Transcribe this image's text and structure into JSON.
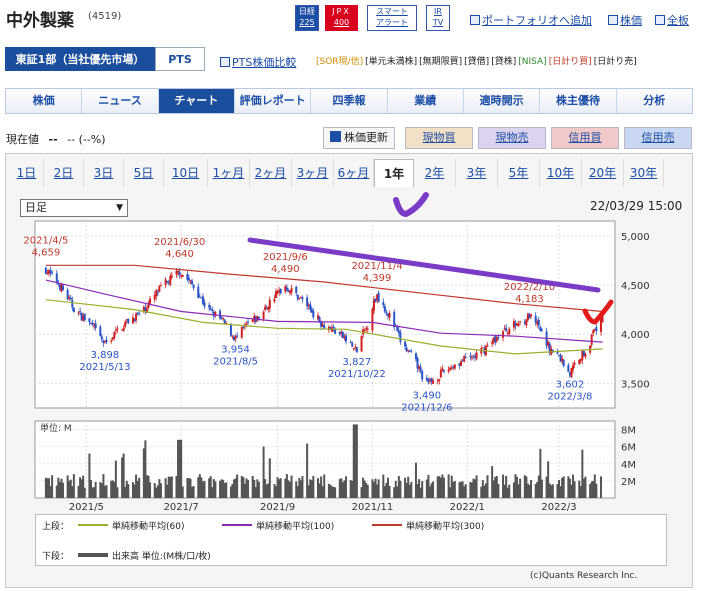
{
  "header": {
    "company": "中外製薬",
    "code": "(4519)",
    "tag_nikkei_1": "日経",
    "tag_nikkei_2": "225",
    "tag_jpx_1": "JPX",
    "tag_jpx_2": "400",
    "tag_smart_1": "スマート",
    "tag_smart_2": "アラート",
    "tag_ir_1": "IR",
    "tag_ir_2": "TV",
    "portfolio": "ポートフォリオへ追加",
    "stock_price": "株価",
    "full_view": "全板"
  },
  "market": {
    "primary": "東証1部（当社優先市場）",
    "pts": "PTS",
    "pts_compare": "PTS株価比較",
    "tags": [
      "[SOR現/信]",
      "[単元未満株]",
      "[無期限買]",
      "[貸借]",
      "[貸株]",
      "[NISA]",
      "[日計り買]",
      "[日計り売]"
    ],
    "tag_colors": [
      "#d88a00",
      "#333333",
      "#333333",
      "#333333",
      "#333333",
      "#2f8a2f",
      "#c0392b",
      "#333333"
    ]
  },
  "nav": {
    "tabs": [
      "株価",
      "ニュース",
      "チャート",
      "評価レポート",
      "四季報",
      "業績",
      "適時開示",
      "株主優待",
      "分析"
    ],
    "active": "チャート"
  },
  "quote": {
    "label": "現在値",
    "price": "--",
    "change": "-- (--%)",
    "refresh": "株価更新",
    "spot_buy": "現物買",
    "spot_sell": "現物売",
    "margin_buy": "信用買",
    "margin_sell": "信用売"
  },
  "periods": {
    "items": [
      "1日",
      "2日",
      "3日",
      "5日",
      "10日",
      "1ヶ月",
      "2ヶ月",
      "3ヶ月",
      "6ヶ月",
      "1年",
      "2年",
      "3年",
      "5年",
      "10年",
      "20年",
      "30年"
    ],
    "selected": "1年"
  },
  "chart_controls": {
    "interval": "日足",
    "timestamp": "22/03/29 15:00"
  },
  "chart_data": {
    "type": "candlestick",
    "y_ticks": [
      "5,000",
      "4,500",
      "4,000",
      "3,500"
    ],
    "ylim": [
      3250,
      5150
    ],
    "x_ticks": [
      "2021/5",
      "2021/7",
      "2021/9",
      "2021/11",
      "2022/1",
      "2022/3"
    ],
    "annotations": [
      {
        "date": "2021/4/5",
        "value": "4,659",
        "kind": "high"
      },
      {
        "date": "2021/5/13",
        "value": "3,898",
        "kind": "low"
      },
      {
        "date": "2021/6/30",
        "value": "4,640",
        "kind": "high"
      },
      {
        "date": "2021/8/5",
        "value": "3,954",
        "kind": "low"
      },
      {
        "date": "2021/9/6",
        "value": "4,490",
        "kind": "high"
      },
      {
        "date": "2021/10/22",
        "value": "3,827",
        "kind": "low"
      },
      {
        "date": "2021/11/4",
        "value": "4,399",
        "kind": "high"
      },
      {
        "date": "2021/12/6",
        "value": "3,490",
        "kind": "low"
      },
      {
        "date": "2022/2/10",
        "value": "4,183",
        "kind": "high"
      },
      {
        "date": "2022/3/8",
        "value": "3,602",
        "kind": "low"
      }
    ],
    "price_path": [
      [
        "2021/4/5",
        4659
      ],
      [
        "2021/5/13",
        3898
      ],
      [
        "2021/6/30",
        4640
      ],
      [
        "2021/8/5",
        3954
      ],
      [
        "2021/9/6",
        4490
      ],
      [
        "2021/10/22",
        3827
      ],
      [
        "2021/11/4",
        4399
      ],
      [
        "2021/12/6",
        3490
      ],
      [
        "2022/2/10",
        4183
      ],
      [
        "2022/3/8",
        3602
      ],
      [
        "2022/3/29",
        4150
      ]
    ],
    "ma60": [
      [
        "2021/4/5",
        4350
      ],
      [
        "2021/6/1",
        4250
      ],
      [
        "2021/7/15",
        4120
      ],
      [
        "2021/9/1",
        4060
      ],
      [
        "2021/10/15",
        4050
      ],
      [
        "2021/12/15",
        3880
      ],
      [
        "2022/2/1",
        3800
      ],
      [
        "2022/3/29",
        3850
      ]
    ],
    "ma100": [
      [
        "2021/4/5",
        4550
      ],
      [
        "2021/5/15",
        4400
      ],
      [
        "2021/7/1",
        4230
      ],
      [
        "2021/9/1",
        4130
      ],
      [
        "2021/11/1",
        4120
      ],
      [
        "2021/12/15",
        4010
      ],
      [
        "2022/2/1",
        3980
      ],
      [
        "2022/3/29",
        3920
      ]
    ],
    "ma300": [
      [
        "2021/4/5",
        4700
      ],
      [
        "2021/6/1",
        4700
      ],
      [
        "2021/8/1",
        4610
      ],
      [
        "2021/10/1",
        4530
      ],
      [
        "2021/12/1",
        4420
      ],
      [
        "2022/2/1",
        4310
      ],
      [
        "2022/3/29",
        4230
      ]
    ],
    "volume_axis": [
      "8M",
      "6M",
      "4M",
      "2M"
    ],
    "volume_label": "単位: M",
    "volume_ylim": [
      0,
      9
    ]
  },
  "legend": {
    "upper_label": "上段：",
    "lower_label": "下段：",
    "ma60": "単純移動平均(60)",
    "ma100": "単純移動平均(100)",
    "ma300": "単純移動平均(300)",
    "volume": "出来高 単位:(M株/口/枚)",
    "colors": {
      "ma60": "#9bb02e",
      "ma100": "#8a2bb5",
      "ma300": "#c0392b",
      "volume": "#555555"
    }
  },
  "credit": "(c)Quants Research Inc."
}
